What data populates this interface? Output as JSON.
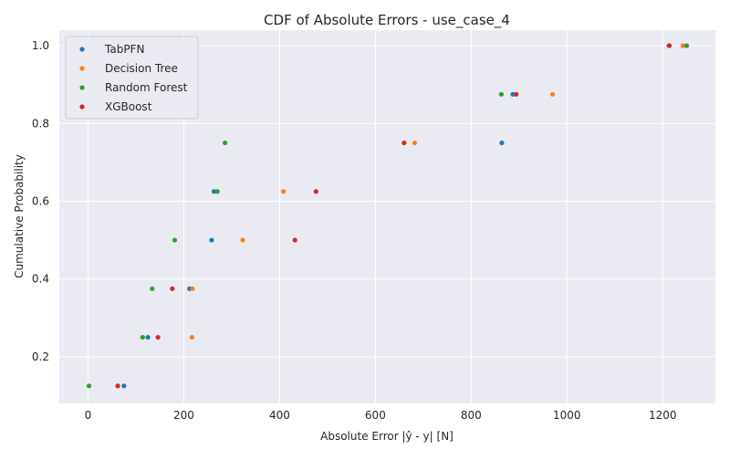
{
  "chart_data": {
    "type": "scatter",
    "title": "CDF of Absolute Errors - use_case_4",
    "xlabel": "Absolute Error |ŷ - y| [N]",
    "ylabel": "Cumulative Probability",
    "xlim": [
      -60,
      1310
    ],
    "ylim": [
      0.08,
      1.04
    ],
    "xticks": [
      0,
      200,
      400,
      600,
      800,
      1000,
      1200
    ],
    "yticks": [
      0.2,
      0.4,
      0.6,
      0.8,
      1.0
    ],
    "xtick_labels": [
      "0",
      "200",
      "400",
      "600",
      "800",
      "1000",
      "1200"
    ],
    "ytick_labels": [
      "0.2",
      "0.4",
      "0.6",
      "0.8",
      "1.0"
    ],
    "grid": true,
    "legend_position": "top-left",
    "series": [
      {
        "name": "TabPFN",
        "color": "#1f77b4",
        "points": [
          [
            75,
            0.125
          ],
          [
            125,
            0.25
          ],
          [
            212,
            0.375
          ],
          [
            258,
            0.5
          ],
          [
            263,
            0.625
          ],
          [
            864,
            0.75
          ],
          [
            887,
            0.875
          ],
          [
            1213,
            1.0
          ]
        ]
      },
      {
        "name": "Decision Tree",
        "color": "#ff7f0e",
        "points": [
          [
            62,
            0.125
          ],
          [
            217,
            0.25
          ],
          [
            218,
            0.375
          ],
          [
            323,
            0.5
          ],
          [
            408,
            0.625
          ],
          [
            682,
            0.75
          ],
          [
            970,
            0.875
          ],
          [
            1242,
            1.0
          ]
        ]
      },
      {
        "name": "Random Forest",
        "color": "#2ca02c",
        "points": [
          [
            2,
            0.125
          ],
          [
            114,
            0.25
          ],
          [
            134,
            0.375
          ],
          [
            181,
            0.5
          ],
          [
            270,
            0.625
          ],
          [
            286,
            0.75
          ],
          [
            863,
            0.875
          ],
          [
            1250,
            1.0
          ]
        ]
      },
      {
        "name": "XGBoost",
        "color": "#d62728",
        "points": [
          [
            62,
            0.125
          ],
          [
            146,
            0.25
          ],
          [
            176,
            0.375
          ],
          [
            432,
            0.5
          ],
          [
            476,
            0.625
          ],
          [
            660,
            0.75
          ],
          [
            894,
            0.875
          ],
          [
            1214,
            1.0
          ]
        ]
      }
    ]
  }
}
